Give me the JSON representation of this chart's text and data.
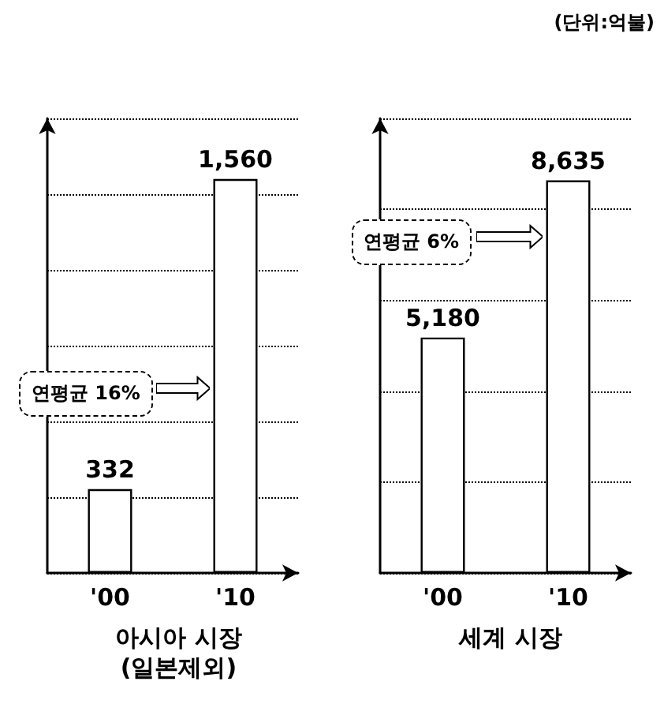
{
  "chart_data": [
    {
      "type": "bar",
      "categories": [
        "'00",
        "'10"
      ],
      "values": [
        332,
        1560
      ],
      "value_labels": [
        "332",
        "1,560"
      ],
      "color": "#ffffff",
      "grid": "y",
      "tick_labels": "x",
      "xlabel": "아시아 시장 (일본제외)",
      "annotations": [
        "연평균 16%"
      ]
    },
    {
      "type": "bar",
      "categories": [
        "'00",
        "'10"
      ],
      "values": [
        5180,
        8635
      ],
      "value_labels": [
        "5,180",
        "8,635"
      ],
      "color": "#ffffff",
      "grid": "y",
      "tick_labels": "x",
      "xlabel": "세계 시장",
      "annotations": [
        "연평균 6%",
        "(단위:억불)"
      ]
    }
  ]
}
